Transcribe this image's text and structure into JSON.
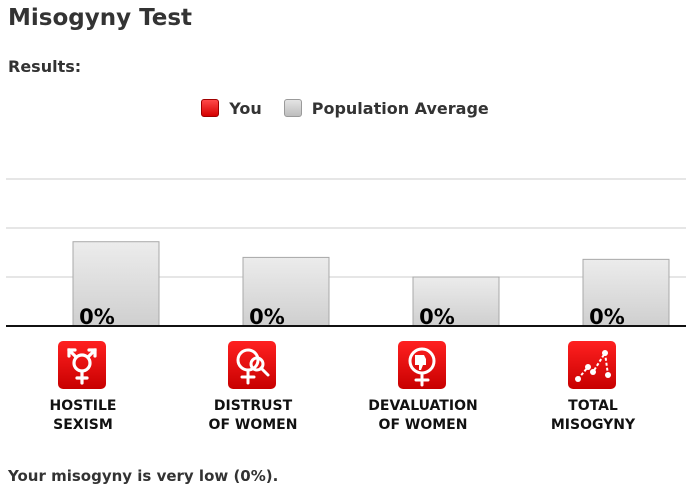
{
  "page": {
    "title": "Misogyny Test",
    "subtitle": "Results:",
    "summary": "Your misogyny is very low (0%)."
  },
  "legend": {
    "you": "You",
    "population": "Population Average"
  },
  "colors": {
    "you": "#e00000",
    "population": "#d4d4d4",
    "icon_bg": "#e60000"
  },
  "categories": [
    {
      "label": "HOSTILE\nSEXISM",
      "icon": "gender-symbol-icon"
    },
    {
      "label": "DISTRUST\nOF WOMEN",
      "icon": "magnifier-female-icon"
    },
    {
      "label": "DEVALUATION\nOF WOMEN",
      "icon": "thumbs-down-female-icon"
    },
    {
      "label": "TOTAL\nMISOGYNY",
      "icon": "line-chart-icon"
    }
  ],
  "chart_data": {
    "type": "bar",
    "categories": [
      "HOSTILE SEXISM",
      "DISTRUST OF WOMEN",
      "DEVALUATION OF WOMEN",
      "TOTAL MISOGYNY"
    ],
    "series": [
      {
        "name": "You",
        "values": [
          0,
          0,
          0,
          0
        ],
        "labels": [
          "0%",
          "0%",
          "0%",
          "0%"
        ]
      },
      {
        "name": "Population Average",
        "values": [
          43,
          35,
          25,
          34
        ]
      }
    ],
    "ylim": [
      0,
      100
    ],
    "grid": true,
    "legend_position": "top-center"
  }
}
